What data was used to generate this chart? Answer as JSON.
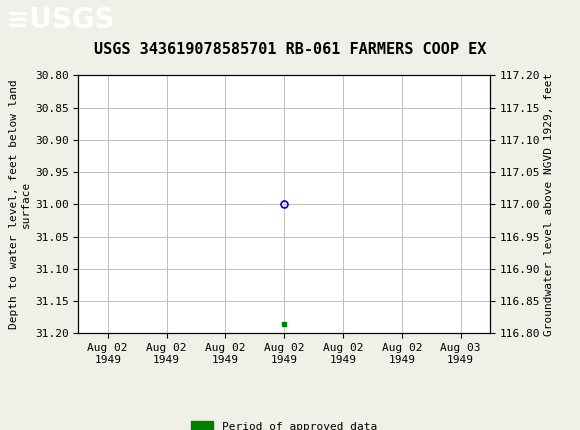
{
  "title": "USGS 343619078585701 RB-061 FARMERS COOP EX",
  "ylabel_left": "Depth to water level, feet below land\nsurface",
  "ylabel_right": "Groundwater level above NGVD 1929, feet",
  "ylim_left": [
    31.2,
    30.8
  ],
  "ylim_right": [
    116.8,
    117.2
  ],
  "yticks_left": [
    30.8,
    30.85,
    30.9,
    30.95,
    31.0,
    31.05,
    31.1,
    31.15,
    31.2
  ],
  "yticks_right": [
    117.2,
    117.15,
    117.1,
    117.05,
    117.0,
    116.95,
    116.9,
    116.85,
    116.8
  ],
  "data_point_x": 3,
  "data_point_y": 31.0,
  "data_point_color": "#0000cc",
  "data_point_marker": "o",
  "data_point_markersize": 5,
  "green_square_y": 31.185,
  "green_square_color": "#008000",
  "header_bg_color": "#1a6b3c",
  "header_text_color": "#ffffff",
  "grid_color": "#c0c0c0",
  "legend_label": "Period of approved data",
  "legend_color": "#008000",
  "font_family": "monospace",
  "title_fontsize": 11,
  "tick_fontsize": 8,
  "label_fontsize": 8,
  "x_tick_labels": [
    "Aug 02\n1949",
    "Aug 02\n1949",
    "Aug 02\n1949",
    "Aug 02\n1949",
    "Aug 02\n1949",
    "Aug 02\n1949",
    "Aug 03\n1949"
  ],
  "x_tick_positions": [
    0,
    1,
    2,
    3,
    4,
    5,
    6
  ],
  "background_color": "#f0f0e8"
}
